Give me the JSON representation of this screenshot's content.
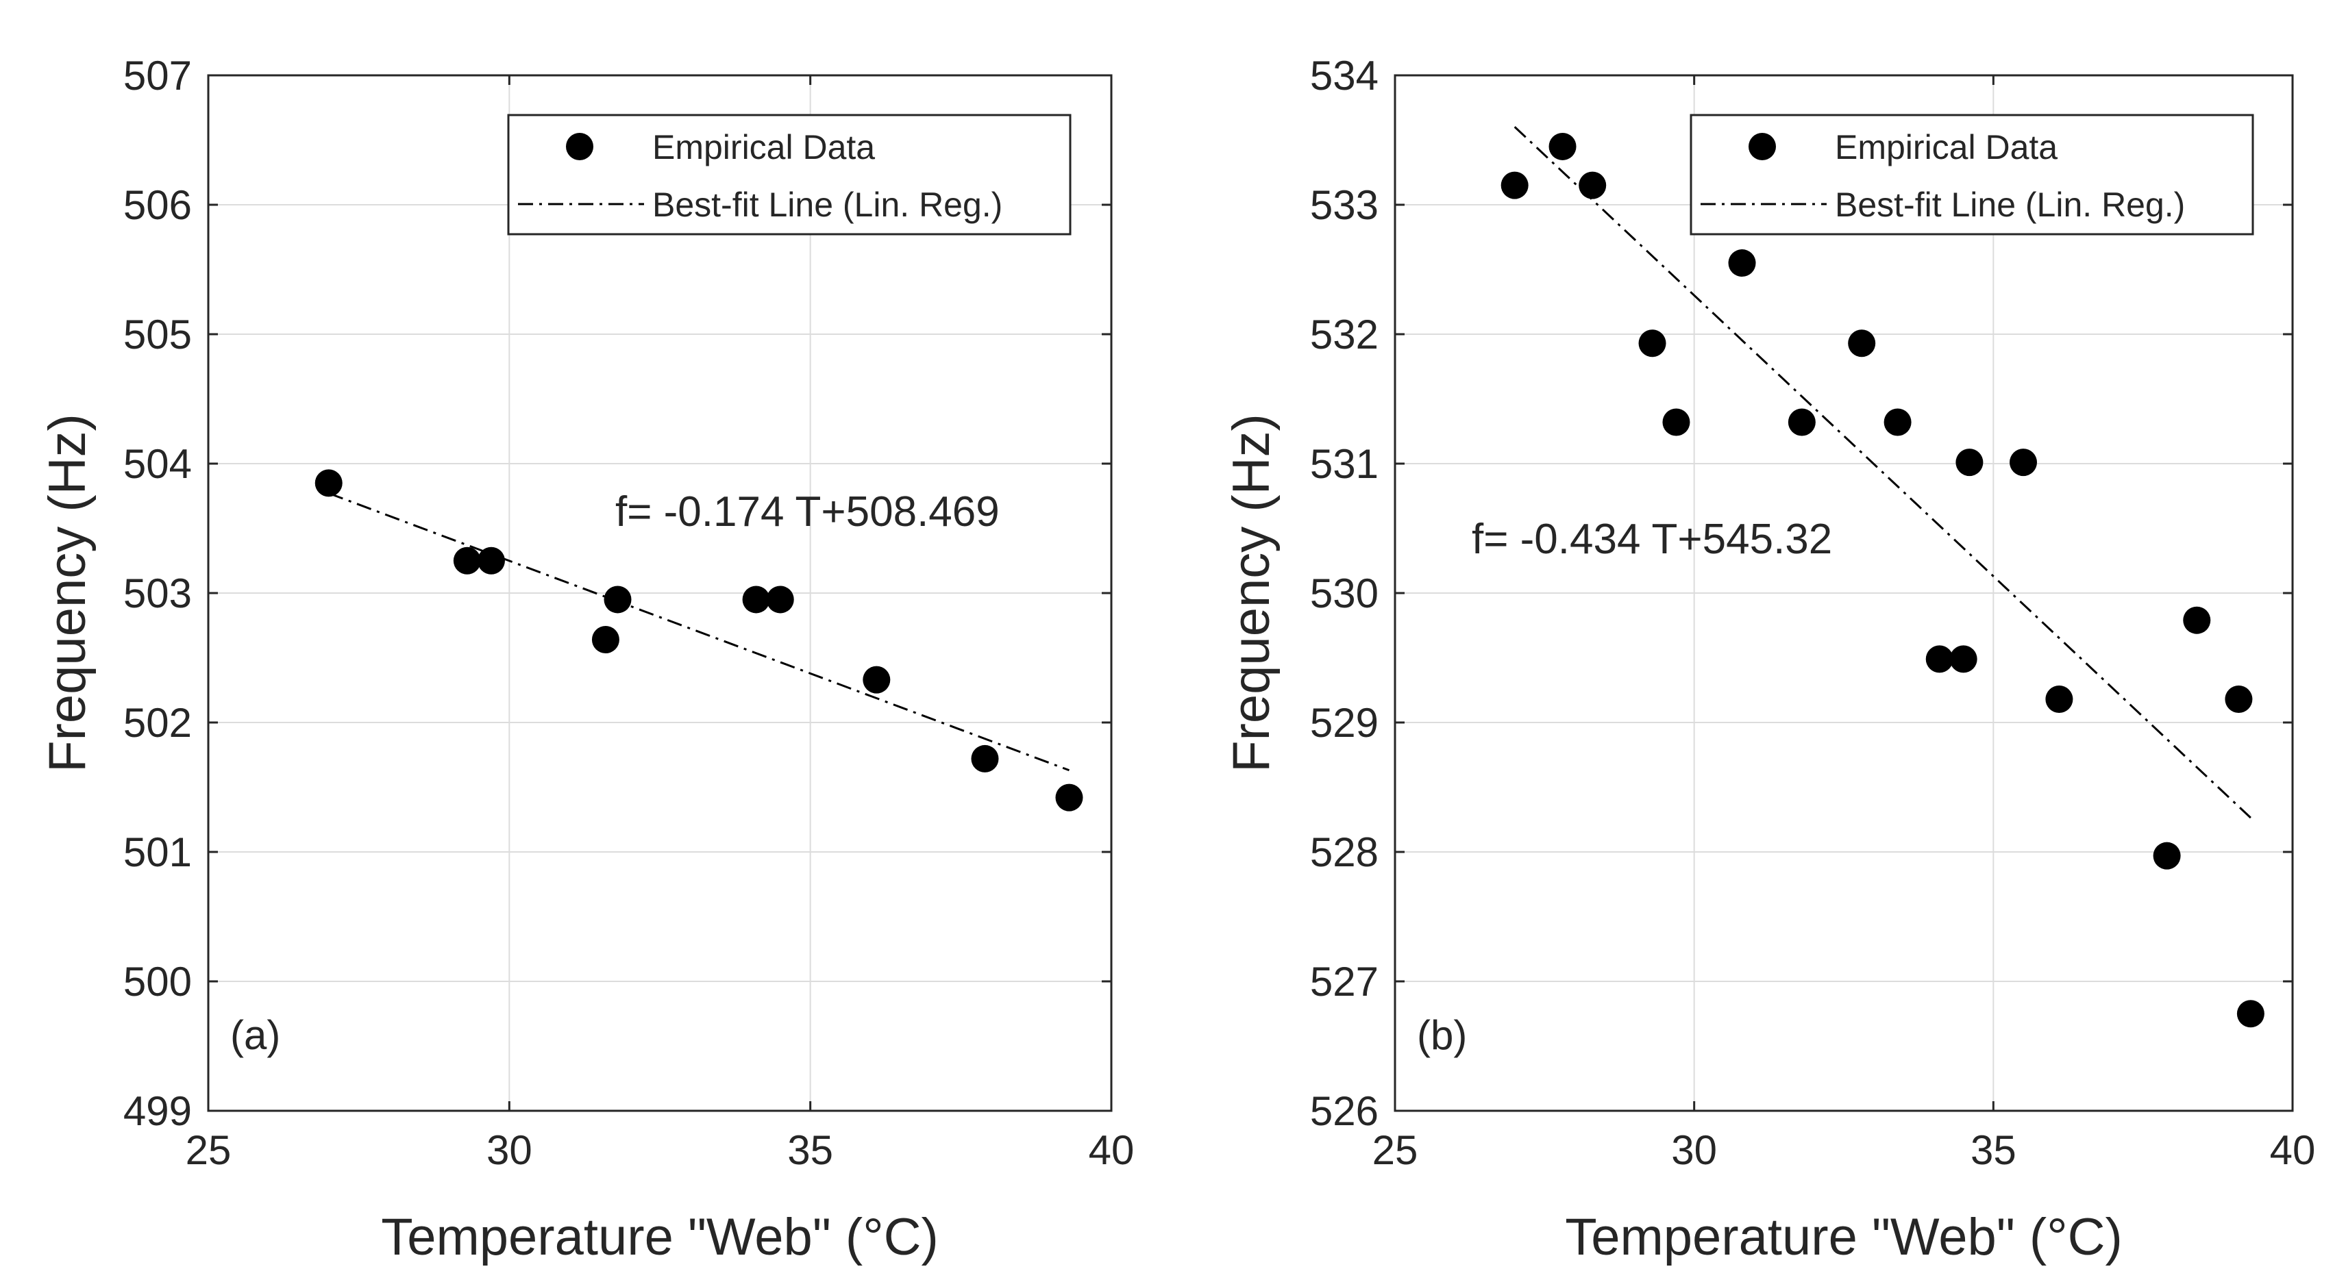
{
  "chart_data": [
    {
      "type": "scatter",
      "panel_label": "(a)",
      "xlabel": "Temperature \"Web\" (°C)",
      "ylabel": "Frequency (Hz)",
      "xlim": [
        25,
        40
      ],
      "ylim": [
        499,
        507
      ],
      "xticks": [
        25,
        30,
        35,
        40
      ],
      "yticks": [
        499,
        500,
        501,
        502,
        503,
        504,
        505,
        506,
        507
      ],
      "grid": true,
      "legend": {
        "position": "top-right",
        "entries": [
          "Empirical Data",
          "Best-fit Line (Lin. Reg.)"
        ]
      },
      "annotation": "f= -0.174 T+508.469",
      "fit": {
        "slope": -0.174,
        "intercept": 508.469,
        "x_range": [
          27.0,
          39.3
        ]
      },
      "series": [
        {
          "name": "Empirical Data",
          "x": [
            27.0,
            29.3,
            29.7,
            31.6,
            31.8,
            34.1,
            34.5,
            36.1,
            37.9,
            39.3
          ],
          "y": [
            503.85,
            503.25,
            503.25,
            502.64,
            502.95,
            502.95,
            502.95,
            502.33,
            501.72,
            501.42
          ]
        }
      ]
    },
    {
      "type": "scatter",
      "panel_label": "(b)",
      "xlabel": "Temperature \"Web\" (°C)",
      "ylabel": "Frequency (Hz)",
      "xlim": [
        25,
        40
      ],
      "ylim": [
        526,
        534
      ],
      "xticks": [
        25,
        30,
        35,
        40
      ],
      "yticks": [
        526,
        527,
        528,
        529,
        530,
        531,
        532,
        533,
        534
      ],
      "grid": true,
      "legend": {
        "position": "top-right",
        "entries": [
          "Empirical Data",
          "Best-fit Line (Lin. Reg.)"
        ]
      },
      "annotation": "f= -0.434 T+545.32",
      "fit": {
        "slope": -0.434,
        "intercept": 545.32,
        "x_range": [
          27.0,
          39.3
        ]
      },
      "series": [
        {
          "name": "Empirical Data",
          "x": [
            27.0,
            27.8,
            28.3,
            29.3,
            29.7,
            30.8,
            31.8,
            32.8,
            33.4,
            34.1,
            34.5,
            34.6,
            35.5,
            36.1,
            37.9,
            38.4,
            39.1,
            39.3
          ],
          "y": [
            533.15,
            533.45,
            533.15,
            531.93,
            531.32,
            532.55,
            531.32,
            531.93,
            531.32,
            529.49,
            529.49,
            531.01,
            531.01,
            529.18,
            527.97,
            529.79,
            529.18,
            526.75
          ]
        }
      ]
    }
  ]
}
